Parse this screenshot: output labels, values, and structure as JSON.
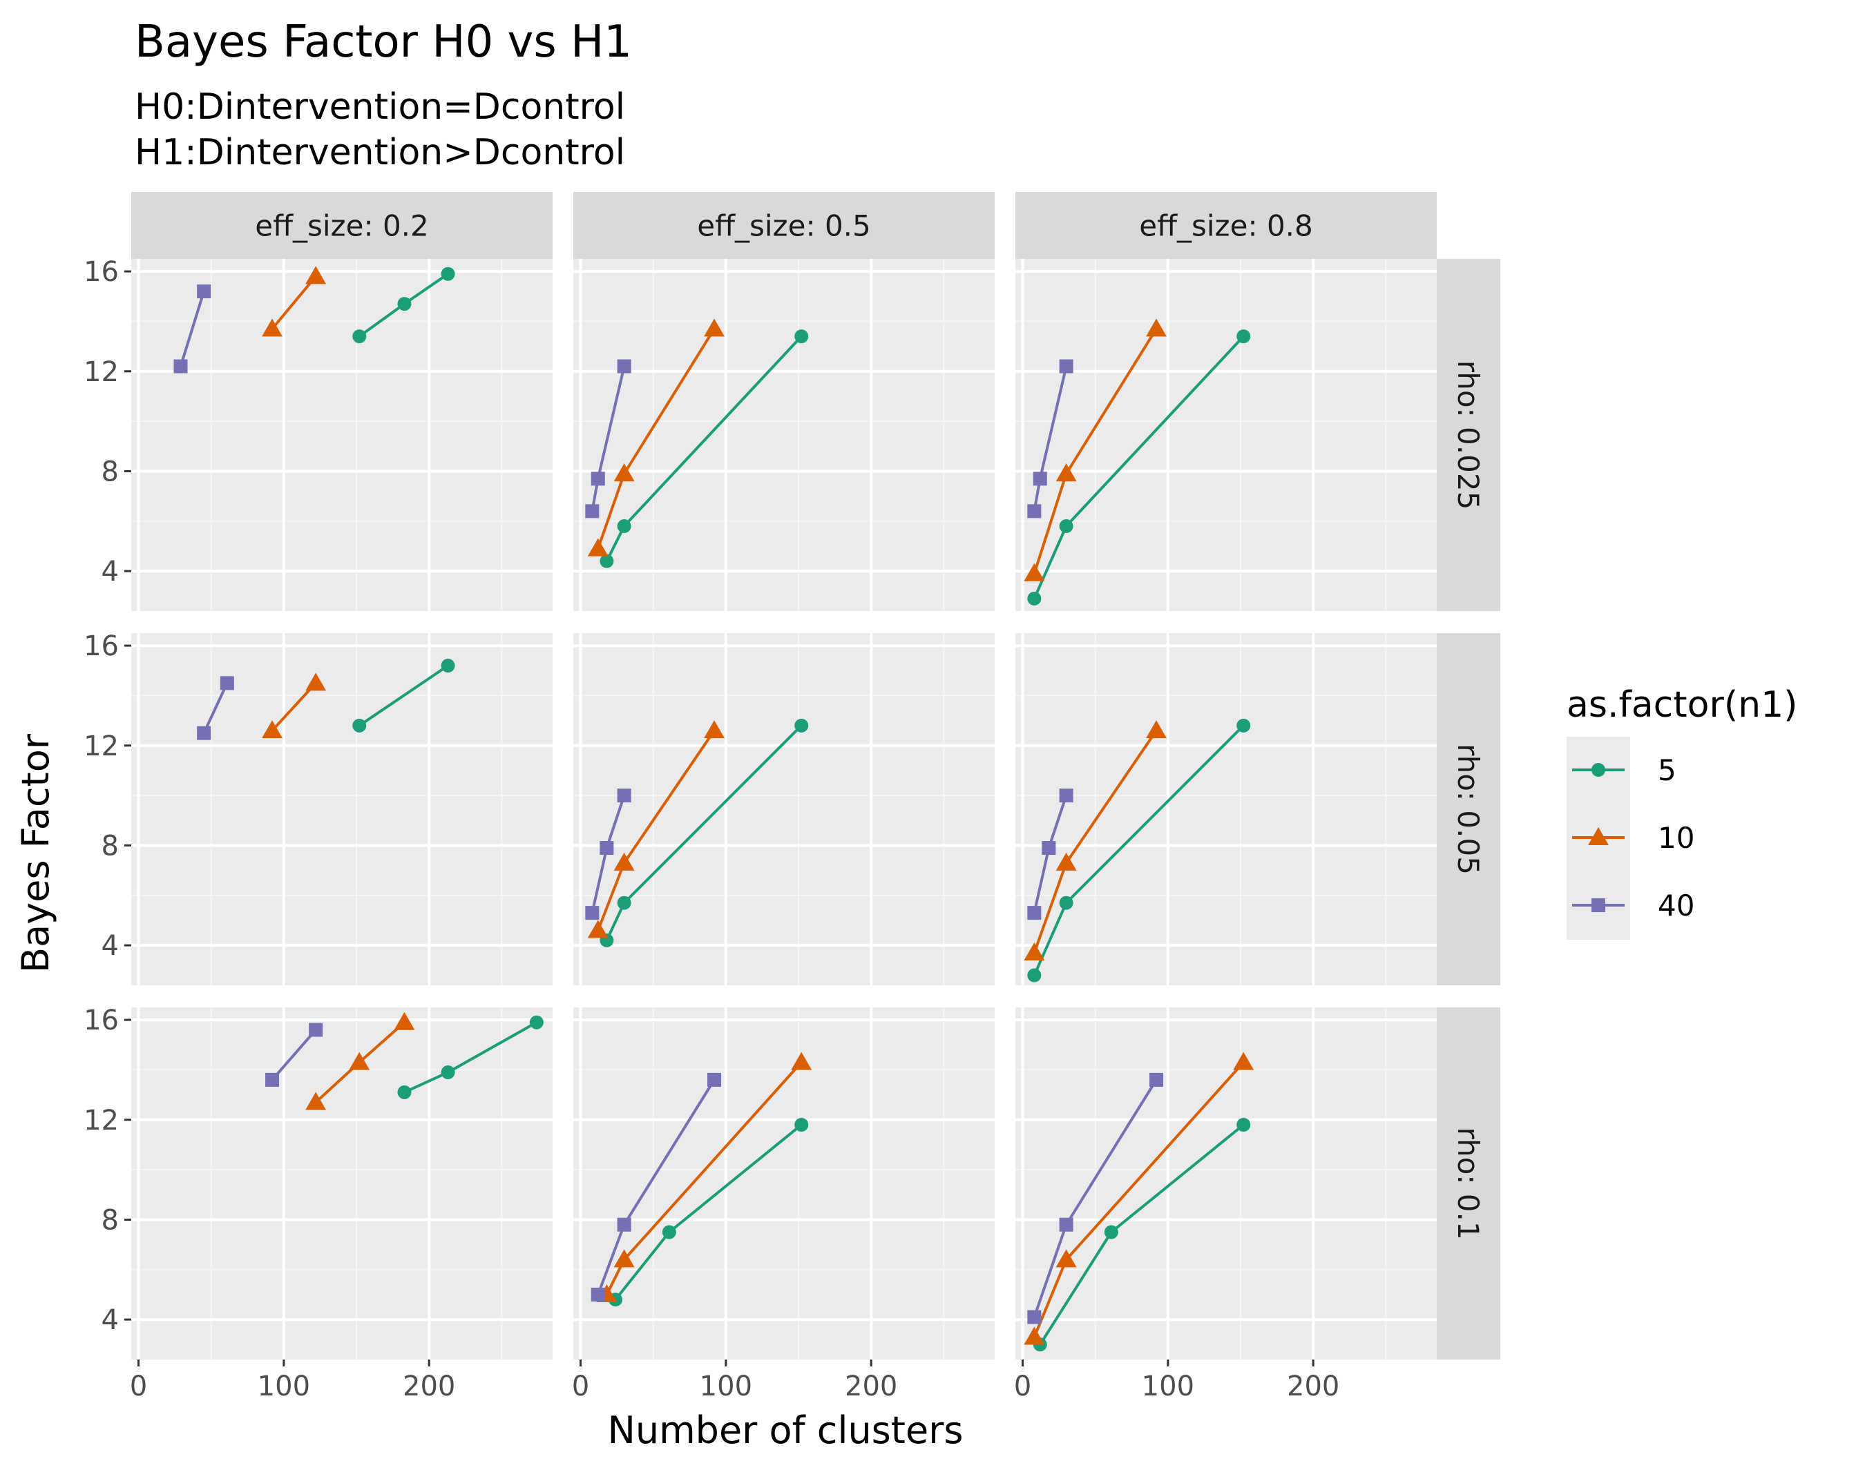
{
  "chart_data": {
    "type": "line",
    "title": "Bayes Factor H0 vs H1",
    "subtitle": [
      "H0:Dintervention=Dcontrol",
      "H1:Dintervention>Dcontrol"
    ],
    "xlabel": "Number of clusters",
    "ylabel": "Bayes Factor",
    "xlim": [
      -5,
      285
    ],
    "ylim": [
      2.4,
      16.5
    ],
    "xticks": [
      0,
      100,
      200
    ],
    "yticks": [
      4,
      8,
      12,
      16
    ],
    "grid": true,
    "legend": {
      "title": "as.factor(n1)",
      "placement": "right",
      "entries": [
        {
          "label": "5",
          "color": "#1B9E77",
          "marker": "circle"
        },
        {
          "label": "10",
          "color": "#D95F02",
          "marker": "triangle"
        },
        {
          "label": "40",
          "color": "#7570B3",
          "marker": "square"
        }
      ]
    },
    "columns": [
      "eff_size: 0.2",
      "eff_size: 0.5",
      "eff_size: 0.8"
    ],
    "rows": [
      "rho: 0.025",
      "rho: 0.05",
      "rho: 0.1"
    ],
    "panels": [
      {
        "row": 0,
        "col": 0,
        "series": [
          {
            "name": "5",
            "points": [
              [
                152,
                13.4
              ],
              [
                183,
                14.7
              ],
              [
                213,
                15.9
              ]
            ]
          },
          {
            "name": "10",
            "points": [
              [
                92,
                13.7
              ],
              [
                122,
                15.8
              ]
            ]
          },
          {
            "name": "40",
            "points": [
              [
                29,
                12.2
              ],
              [
                45,
                15.2
              ]
            ]
          }
        ]
      },
      {
        "row": 0,
        "col": 1,
        "series": [
          {
            "name": "5",
            "points": [
              [
                18,
                4.4
              ],
              [
                30,
                5.8
              ],
              [
                152,
                13.4
              ]
            ]
          },
          {
            "name": "10",
            "points": [
              [
                12,
                4.9
              ],
              [
                30,
                7.9
              ],
              [
                92,
                13.7
              ]
            ]
          },
          {
            "name": "40",
            "points": [
              [
                8,
                6.4
              ],
              [
                12,
                7.7
              ],
              [
                30,
                12.2
              ]
            ]
          }
        ]
      },
      {
        "row": 0,
        "col": 2,
        "series": [
          {
            "name": "5",
            "points": [
              [
                8,
                2.9
              ],
              [
                30,
                5.8
              ],
              [
                152,
                13.4
              ]
            ]
          },
          {
            "name": "10",
            "points": [
              [
                8,
                3.9
              ],
              [
                30,
                7.9
              ],
              [
                92,
                13.7
              ]
            ]
          },
          {
            "name": "40",
            "points": [
              [
                8,
                6.4
              ],
              [
                12,
                7.7
              ],
              [
                30,
                12.2
              ]
            ]
          }
        ]
      },
      {
        "row": 1,
        "col": 0,
        "series": [
          {
            "name": "5",
            "points": [
              [
                152,
                12.8
              ],
              [
                213,
                15.2
              ]
            ]
          },
          {
            "name": "10",
            "points": [
              [
                92,
                12.6
              ],
              [
                122,
                14.5
              ]
            ]
          },
          {
            "name": "40",
            "points": [
              [
                45,
                12.5
              ],
              [
                61,
                14.5
              ]
            ]
          }
        ]
      },
      {
        "row": 1,
        "col": 1,
        "series": [
          {
            "name": "5",
            "points": [
              [
                18,
                4.2
              ],
              [
                30,
                5.7
              ],
              [
                152,
                12.8
              ]
            ]
          },
          {
            "name": "10",
            "points": [
              [
                12,
                4.6
              ],
              [
                30,
                7.3
              ],
              [
                92,
                12.6
              ]
            ]
          },
          {
            "name": "40",
            "points": [
              [
                8,
                5.3
              ],
              [
                18,
                7.9
              ],
              [
                30,
                10.0
              ]
            ]
          }
        ]
      },
      {
        "row": 1,
        "col": 2,
        "series": [
          {
            "name": "5",
            "points": [
              [
                8,
                2.8
              ],
              [
                30,
                5.7
              ],
              [
                152,
                12.8
              ]
            ]
          },
          {
            "name": "10",
            "points": [
              [
                8,
                3.7
              ],
              [
                30,
                7.3
              ],
              [
                92,
                12.6
              ]
            ]
          },
          {
            "name": "40",
            "points": [
              [
                8,
                5.3
              ],
              [
                18,
                7.9
              ],
              [
                30,
                10.0
              ]
            ]
          }
        ]
      },
      {
        "row": 2,
        "col": 0,
        "series": [
          {
            "name": "5",
            "points": [
              [
                183,
                13.1
              ],
              [
                213,
                13.9
              ],
              [
                274,
                15.9
              ]
            ]
          },
          {
            "name": "10",
            "points": [
              [
                122,
                12.7
              ],
              [
                152,
                14.3
              ],
              [
                183,
                15.9
              ]
            ]
          },
          {
            "name": "40",
            "points": [
              [
                92,
                13.6
              ],
              [
                122,
                15.6
              ]
            ]
          }
        ]
      },
      {
        "row": 2,
        "col": 1,
        "series": [
          {
            "name": "5",
            "points": [
              [
                24,
                4.8
              ],
              [
                61,
                7.5
              ],
              [
                152,
                11.8
              ]
            ]
          },
          {
            "name": "10",
            "points": [
              [
                18,
                5.0
              ],
              [
                30,
                6.4
              ],
              [
                152,
                14.3
              ]
            ]
          },
          {
            "name": "40",
            "points": [
              [
                12,
                5.0
              ],
              [
                30,
                7.8
              ],
              [
                92,
                13.6
              ]
            ]
          }
        ]
      },
      {
        "row": 2,
        "col": 2,
        "series": [
          {
            "name": "5",
            "points": [
              [
                12,
                3.0
              ],
              [
                61,
                7.5
              ],
              [
                152,
                11.8
              ]
            ]
          },
          {
            "name": "10",
            "points": [
              [
                8,
                3.3
              ],
              [
                30,
                6.4
              ],
              [
                152,
                14.3
              ]
            ]
          },
          {
            "name": "40",
            "points": [
              [
                8,
                4.1
              ],
              [
                30,
                7.8
              ],
              [
                92,
                13.6
              ]
            ]
          }
        ]
      }
    ]
  }
}
